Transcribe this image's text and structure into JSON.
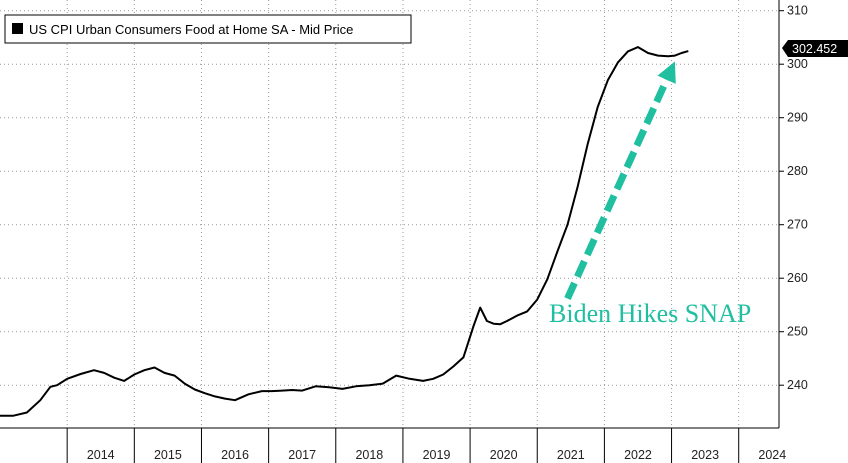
{
  "chart_data": {
    "type": "line",
    "legend": "US CPI Urban Consumers Food at Home SA - Mid Price",
    "legend_position": "top-left",
    "ylim": [
      232,
      312
    ],
    "yticks": [
      240,
      250,
      260,
      270,
      280,
      290,
      300,
      310
    ],
    "y_axis_side": "right",
    "x_tick_labels": [
      "2014",
      "2015",
      "2016",
      "2017",
      "2018",
      "2019",
      "2020",
      "2021",
      "2022",
      "2023",
      "2024"
    ],
    "xlim": [
      2013.0,
      2024.6
    ],
    "grid": true,
    "last_value": "302.452",
    "series": [
      {
        "color": "#000000",
        "x": [
          2013.0,
          2013.2,
          2013.4,
          2013.6,
          2013.75,
          2013.85,
          2014.0,
          2014.2,
          2014.4,
          2014.55,
          2014.7,
          2014.85,
          2015.0,
          2015.15,
          2015.3,
          2015.45,
          2015.6,
          2015.75,
          2015.9,
          2016.05,
          2016.2,
          2016.35,
          2016.5,
          2016.7,
          2016.9,
          2017.05,
          2017.2,
          2017.35,
          2017.5,
          2017.7,
          2017.9,
          2018.1,
          2018.3,
          2018.5,
          2018.7,
          2018.9,
          2019.1,
          2019.3,
          2019.45,
          2019.6,
          2019.75,
          2019.9,
          2020.05,
          2020.15,
          2020.25,
          2020.35,
          2020.45,
          2020.55,
          2020.7,
          2020.85,
          2021.0,
          2021.15,
          2021.3,
          2021.45,
          2021.6,
          2021.75,
          2021.9,
          2022.05,
          2022.2,
          2022.35,
          2022.5,
          2022.65,
          2022.8,
          2022.95,
          2023.05,
          2023.15,
          2023.25
        ],
        "values": [
          234.3,
          234.3,
          234.9,
          237.2,
          239.7,
          240.0,
          241.2,
          242.1,
          242.8,
          242.3,
          241.4,
          240.8,
          242.0,
          242.8,
          243.3,
          242.3,
          241.8,
          240.3,
          239.2,
          238.5,
          237.9,
          237.5,
          237.2,
          238.3,
          238.9,
          238.9,
          239.0,
          239.1,
          239.0,
          239.8,
          239.6,
          239.3,
          239.8,
          240.0,
          240.3,
          241.8,
          241.2,
          240.8,
          241.2,
          242.0,
          243.5,
          245.2,
          251.0,
          254.5,
          252.0,
          251.5,
          251.4,
          252.0,
          253.0,
          253.8,
          256.0,
          259.8,
          265.0,
          270.0,
          277.0,
          285.0,
          292.0,
          297.0,
          300.3,
          302.4,
          303.2,
          302.1,
          301.6,
          301.5,
          301.6,
          302.1,
          302.452
        ]
      }
    ],
    "annotation": {
      "text": "Biden Hikes SNAP",
      "color": "#1fbfa0",
      "arrow_from": [
        2021.45,
        256.2
      ],
      "arrow_to": [
        2023.05,
        300.5
      ]
    }
  }
}
